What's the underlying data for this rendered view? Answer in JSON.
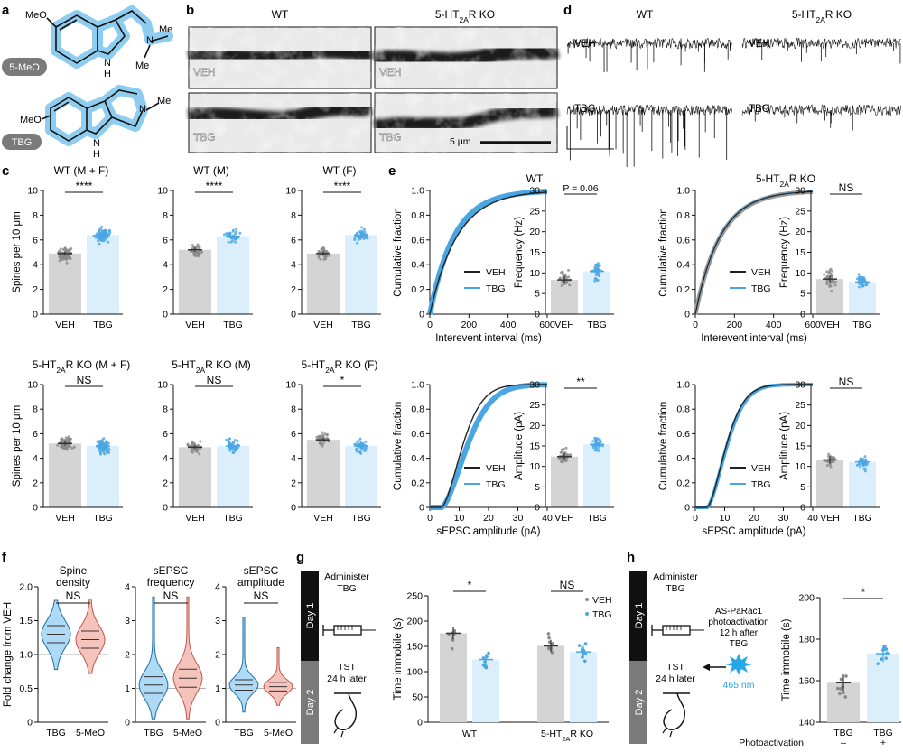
{
  "panel_letters": [
    "a",
    "b",
    "c",
    "d",
    "e",
    "f",
    "g",
    "h"
  ],
  "colors": {
    "veh": "#8a8a8a",
    "veh_fill": "#d4d4d4",
    "tbg": "#4aa6e3",
    "tbg_fill": "#dbeefb",
    "mol_highlight": "#8ecdf0",
    "salmon": "#e6958a"
  },
  "panel_a": {
    "molecule1": {
      "label": "5-MeO",
      "ome": "MeO",
      "nh": "N",
      "h": "H",
      "n": "N",
      "me1": "Me",
      "me2": "Me"
    },
    "molecule2": {
      "label": "TBG",
      "ome": "MeO",
      "nh": "N",
      "h": "H",
      "n": "N",
      "me": "Me"
    }
  },
  "panel_b": {
    "col_wt": "WT",
    "col_ko": "5-HT2AR KO",
    "row1": "VEH",
    "row2": "TBG",
    "scale": "5 μm"
  },
  "panel_d": {
    "col_wt": "WT",
    "col_ko": "5-HT2AR KO",
    "row1": "VEH",
    "row2": "TBG"
  },
  "panel_c": {
    "ylabel": "Spines per 10 μm",
    "yticks": [
      "0",
      "2",
      "4",
      "6",
      "8",
      "10"
    ],
    "groups": [
      "VEH",
      "TBG"
    ],
    "plots": [
      {
        "title": "WT (M + F)",
        "sig": "****",
        "means": [
          4.9,
          6.4
        ]
      },
      {
        "title": "WT (M)",
        "sig": "****",
        "means": [
          5.2,
          6.3
        ]
      },
      {
        "title": "WT (F)",
        "sig": "****",
        "means": [
          4.9,
          6.4
        ]
      },
      {
        "title": "5-HT2AR KO (M + F)",
        "sig": "NS",
        "means": [
          5.2,
          5.0
        ]
      },
      {
        "title": "5-HT2AR KO (M)",
        "sig": "NS",
        "means": [
          4.9,
          5.0
        ]
      },
      {
        "title": "5-HT2AR KO (F)",
        "sig": "*",
        "means": [
          5.5,
          5.0
        ]
      }
    ]
  },
  "panel_e": {
    "wt_title": "WT",
    "ko_title": "5-HT2AR KO",
    "cum_ylabel": "Cumulative fraction",
    "cum_yticks": [
      "0",
      "0.2",
      "0.4",
      "0.6",
      "0.8",
      "1.0"
    ],
    "interval_xlabel": "Interevent interval (ms)",
    "interval_xticks": [
      "0",
      "200",
      "400",
      "600"
    ],
    "amp_xlabel": "sEPSC amplitude (pA)",
    "amp_xticks": [
      "0",
      "10",
      "20",
      "30",
      "40"
    ],
    "legend": [
      "VEH",
      "TBG"
    ],
    "freq_ylabel": "Frequency (Hz)",
    "freq_yticks": [
      "0",
      "5",
      "10",
      "15",
      "20",
      "25",
      "30"
    ],
    "amp_ylabel": "Amplitude (pA)",
    "amp_yticks": [
      "0",
      "5",
      "10",
      "15",
      "20",
      "25",
      "30"
    ],
    "freq_wt": {
      "sig": "P = 0.06",
      "means": [
        8.3,
        10.4
      ]
    },
    "freq_ko": {
      "sig": "NS",
      "means": [
        8.5,
        7.8
      ]
    },
    "amp_wt": {
      "sig": "**",
      "means": [
        12.4,
        15.4
      ]
    },
    "amp_ko": {
      "sig": "NS",
      "means": [
        11.6,
        11.1
      ]
    },
    "groups": [
      "VEH",
      "TBG"
    ]
  },
  "panel_f": {
    "ylabel": "Fold change from VEH",
    "yticks": [
      "0",
      "0.5",
      "1.0",
      "1.5",
      "2.0"
    ],
    "plots": [
      {
        "title1": "Spine",
        "title2": "density",
        "sig": "NS",
        "groups": [
          "TBG",
          "5-MeO"
        ]
      },
      {
        "title1": "sEPSC",
        "title2": "frequency",
        "sig": "NS",
        "groups": [
          "TBG",
          "5-MeO"
        ]
      },
      {
        "title1": "sEPSC",
        "title2": "amplitude",
        "sig": "NS",
        "groups": [
          "TBG",
          "5-MeO"
        ]
      }
    ],
    "yticks3": [
      "0",
      "1",
      "2",
      "3",
      "4"
    ]
  },
  "panel_g": {
    "day1": "Day 1",
    "day2": "Day 2",
    "step1a": "Administer",
    "step1b": "TBG",
    "step2a": "TST",
    "step2b": "24 h later",
    "ylabel": "Time immobile (s)",
    "yticks": [
      "0",
      "50",
      "100",
      "150",
      "200",
      "250"
    ],
    "groups": [
      "WT",
      "5-HT2AR KO"
    ],
    "legend": [
      "VEH",
      "TBG"
    ],
    "sig": [
      "*",
      "NS"
    ],
    "means": [
      [
        176,
        124
      ],
      [
        151,
        139
      ]
    ]
  },
  "panel_h": {
    "day1": "Day 1",
    "day2": "Day 2",
    "step1a": "Administer",
    "step1b": "TBG",
    "act1": "AS-PaRac1",
    "act2": "photoactivation",
    "act3": "12 h after",
    "act4": "TBG",
    "wavelength": "465 nm",
    "step2a": "TST",
    "step2b": "24 h later",
    "ylabel": "Time immobile (s)",
    "yticks": [
      "140",
      "160",
      "180",
      "200"
    ],
    "groups": [
      "TBG",
      "TBG"
    ],
    "photo_label": "Photoactivation",
    "photo_signs": [
      "–",
      "+"
    ],
    "sig": "*",
    "means": [
      159,
      173
    ]
  },
  "chart_data": [
    {
      "type": "bar",
      "title": "WT (M + F)",
      "categories": [
        "VEH",
        "TBG"
      ],
      "values": [
        4.9,
        6.4
      ],
      "ylabel": "Spines per 10 μm",
      "ylim": [
        0,
        10
      ]
    },
    {
      "type": "bar",
      "title": "WT (M)",
      "categories": [
        "VEH",
        "TBG"
      ],
      "values": [
        5.2,
        6.3
      ],
      "ylim": [
        0,
        10
      ]
    },
    {
      "type": "bar",
      "title": "WT (F)",
      "categories": [
        "VEH",
        "TBG"
      ],
      "values": [
        4.9,
        6.4
      ],
      "ylim": [
        0,
        10
      ]
    },
    {
      "type": "bar",
      "title": "5-HT2AR KO (M + F)",
      "categories": [
        "VEH",
        "TBG"
      ],
      "values": [
        5.2,
        5.0
      ],
      "ylabel": "Spines per 10 μm",
      "ylim": [
        0,
        10
      ]
    },
    {
      "type": "bar",
      "title": "5-HT2AR KO (M)",
      "categories": [
        "VEH",
        "TBG"
      ],
      "values": [
        4.9,
        5.0
      ],
      "ylim": [
        0,
        10
      ]
    },
    {
      "type": "bar",
      "title": "5-HT2AR KO (F)",
      "categories": [
        "VEH",
        "TBG"
      ],
      "values": [
        5.5,
        5.0
      ],
      "ylim": [
        0,
        10
      ]
    },
    {
      "type": "bar",
      "categories": [
        "VEH",
        "TBG"
      ],
      "values": [
        8.3,
        10.4
      ],
      "ylabel": "Frequency (Hz)",
      "ylim": [
        0,
        30
      ]
    },
    {
      "type": "bar",
      "categories": [
        "VEH",
        "TBG"
      ],
      "values": [
        8.5,
        7.8
      ],
      "ylabel": "Frequency (Hz)",
      "ylim": [
        0,
        30
      ]
    },
    {
      "type": "bar",
      "categories": [
        "VEH",
        "TBG"
      ],
      "values": [
        12.4,
        15.4
      ],
      "ylabel": "Amplitude (pA)",
      "ylim": [
        0,
        30
      ]
    },
    {
      "type": "bar",
      "categories": [
        "VEH",
        "TBG"
      ],
      "values": [
        11.6,
        11.1
      ],
      "ylabel": "Amplitude (pA)",
      "ylim": [
        0,
        30
      ]
    },
    {
      "type": "bar",
      "categories": [
        "WT",
        "5-HT2AR KO"
      ],
      "series": [
        {
          "name": "VEH",
          "values": [
            176,
            151
          ]
        },
        {
          "name": "TBG",
          "values": [
            124,
            139
          ]
        }
      ],
      "ylabel": "Time immobile (s)",
      "ylim": [
        0,
        250
      ]
    },
    {
      "type": "bar",
      "categories": [
        "TBG",
        "TBG"
      ],
      "values": [
        159,
        173
      ],
      "ylabel": "Time immobile (s)",
      "ylim": [
        140,
        200
      ]
    }
  ]
}
